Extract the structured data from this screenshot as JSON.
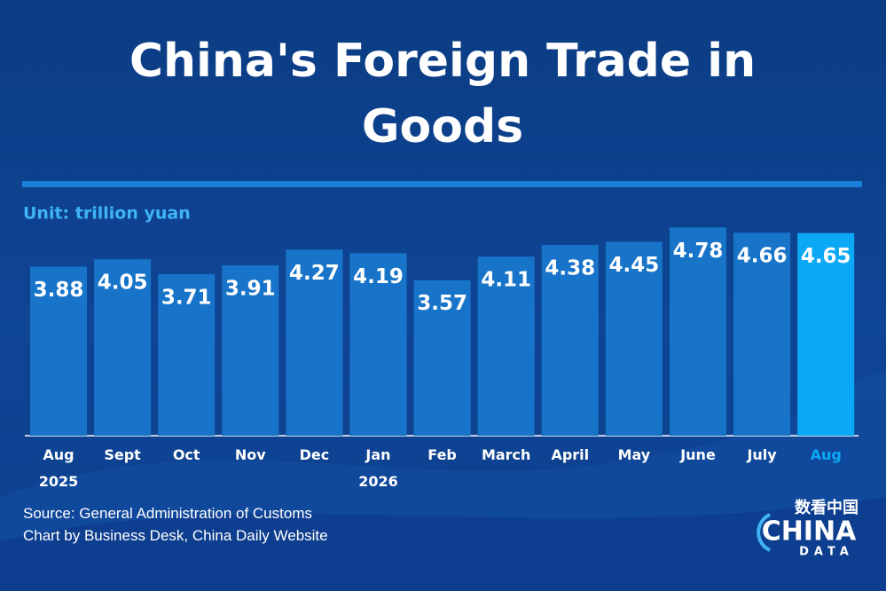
{
  "chart_data": {
    "type": "bar",
    "title": "China's Foreign Trade in Goods",
    "unit": "Unit: trillion yuan",
    "categories": [
      "Aug 2025",
      "Sept",
      "Oct",
      "Nov",
      "Dec",
      "Jan 2026",
      "Feb",
      "March",
      "April",
      "May",
      "June",
      "July",
      "Aug"
    ],
    "values": [
      3.88,
      4.05,
      3.71,
      3.91,
      4.27,
      4.19,
      3.57,
      4.11,
      4.38,
      4.45,
      4.78,
      4.66,
      4.65
    ],
    "colors": [
      "#1874c9",
      "#1874c9",
      "#1874c9",
      "#1874c9",
      "#1874c9",
      "#1874c9",
      "#1874c9",
      "#1874c9",
      "#1874c9",
      "#1874c9",
      "#1874c9",
      "#1874c9",
      "#0ba8f6"
    ],
    "source": "Source: General Administration of Customs",
    "credit": "Chart by Business Desk, China Daily Website",
    "logo": {
      "top": "数看中国",
      "main": "CHINA",
      "sub": "DATA"
    }
  }
}
